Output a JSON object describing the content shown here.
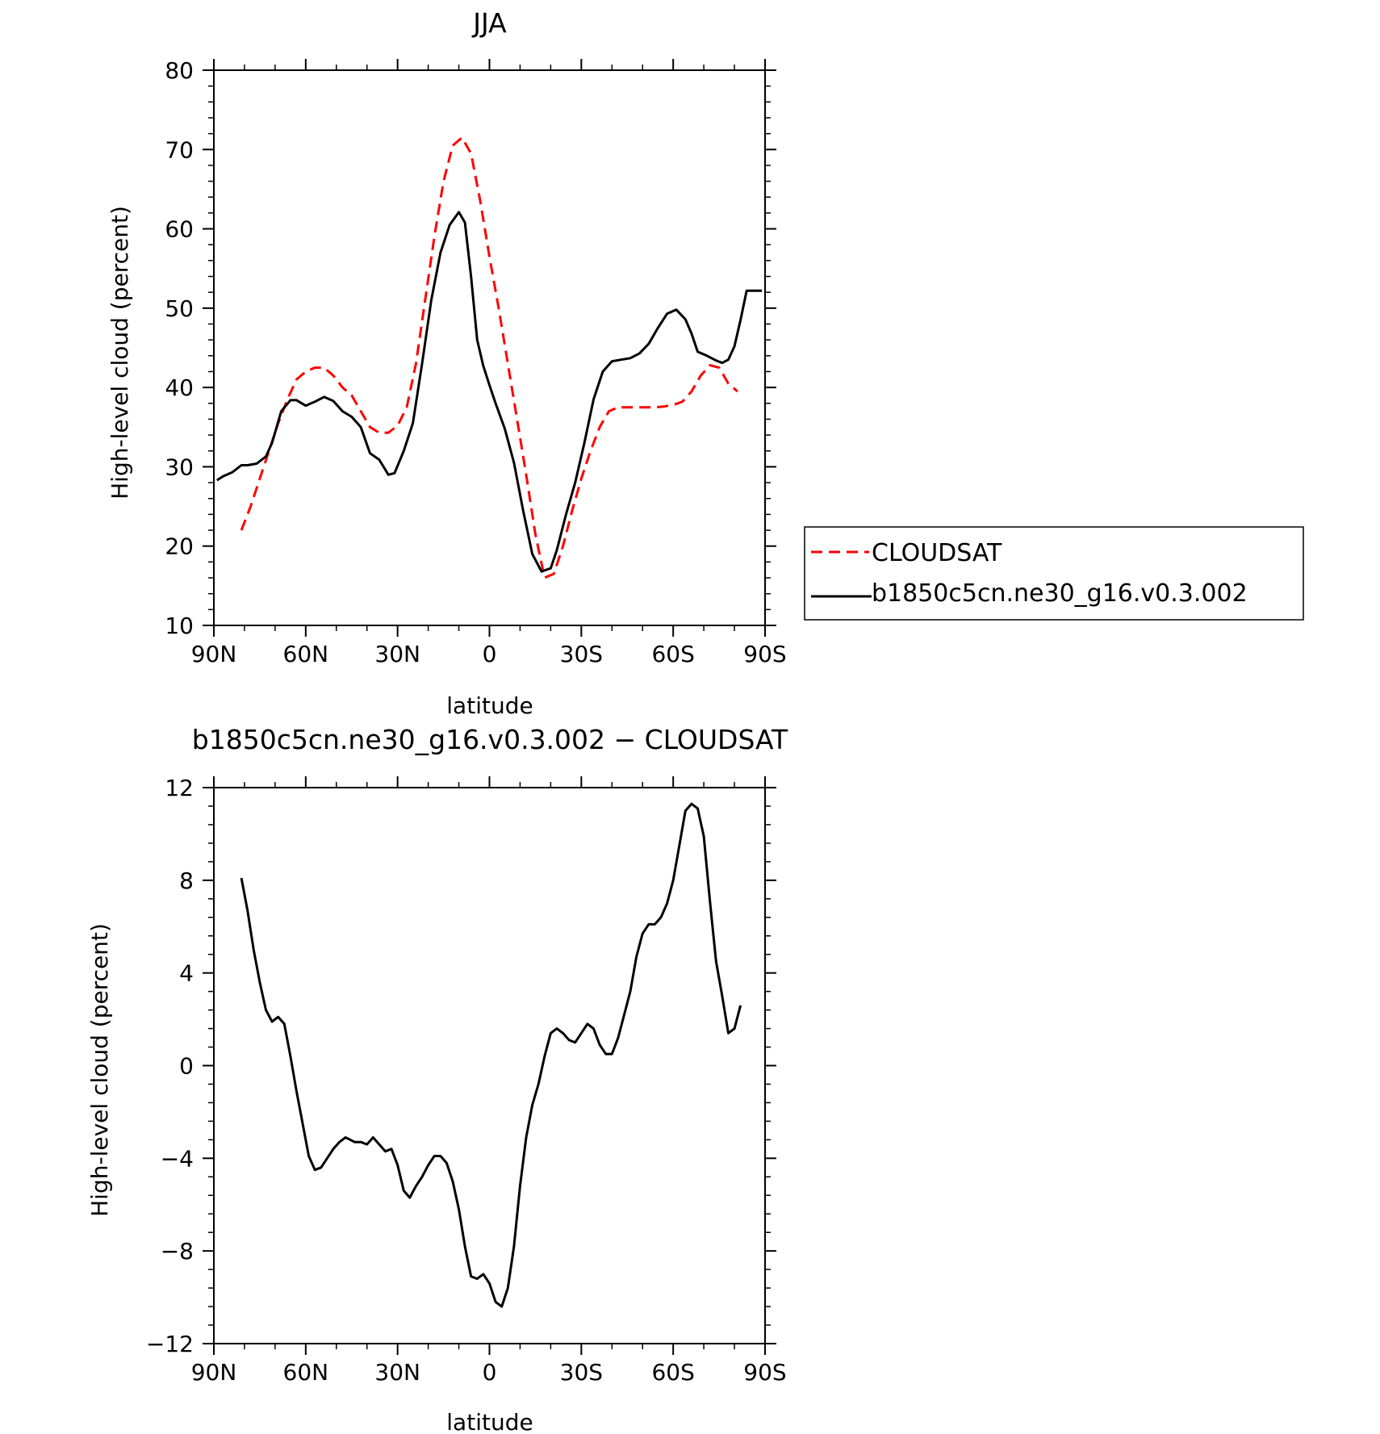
{
  "chart_data": [
    {
      "type": "line",
      "title": "JJA",
      "xlabel": "latitude",
      "ylabel": "High-level cloud (percent)",
      "xlim": [
        -90,
        90
      ],
      "ylim": [
        10,
        80
      ],
      "x_ticks": [
        -90,
        -60,
        -30,
        0,
        30,
        60,
        90
      ],
      "x_tick_labels": [
        "90N",
        "60N",
        "30N",
        "0",
        "30S",
        "60S",
        "90S"
      ],
      "y_ticks": [
        10,
        20,
        30,
        40,
        50,
        60,
        70,
        80
      ],
      "y_tick_labels": [
        "10",
        "20",
        "30",
        "40",
        "50",
        "60",
        "70",
        "80"
      ],
      "legend_position": "right",
      "series": [
        {
          "name": "CLOUDSAT",
          "color": "#ff0000",
          "dash": "dashed",
          "x": [
            -81,
            -78,
            -75,
            -72,
            -69,
            -66,
            -63,
            -60,
            -57,
            -54,
            -51,
            -48,
            -45,
            -42,
            -39,
            -36,
            -33,
            -30,
            -27,
            -24,
            -21,
            -18,
            -15,
            -12,
            -9,
            -6,
            -3,
            0,
            3,
            6,
            9,
            12,
            15,
            18,
            21,
            24,
            27,
            30,
            33,
            36,
            39,
            42,
            45,
            48,
            51,
            54,
            57,
            60,
            63,
            66,
            69,
            72,
            75,
            78,
            81
          ],
          "y": [
            22,
            25,
            28.5,
            32,
            35.5,
            38.5,
            41,
            42,
            42.5,
            42.5,
            41.5,
            40,
            39,
            37,
            35,
            34.3,
            34.3,
            35.2,
            37.5,
            43,
            51,
            59,
            66,
            70.5,
            71.5,
            69.5,
            63.5,
            56.5,
            50,
            43,
            36,
            29,
            21.5,
            16,
            16.5,
            20,
            24.5,
            28.5,
            32,
            35,
            37,
            37.5,
            37.5,
            37.5,
            37.5,
            37.5,
            37.6,
            37.8,
            38.2,
            39.5,
            41.5,
            42.8,
            42.5,
            40.5,
            39.5
          ]
        },
        {
          "name": "b1850c5cn.ne30_g16.v0.3.002",
          "color": "#000000",
          "dash": "solid",
          "x": [
            -89,
            -87,
            -84,
            -81,
            -79,
            -76,
            -73,
            -71,
            -68,
            -65,
            -63,
            -60,
            -57,
            -54,
            -51,
            -48,
            -45,
            -42,
            -39,
            -36,
            -33,
            -31,
            -28,
            -25,
            -22,
            -19,
            -16,
            -13,
            -10,
            -8,
            -6,
            -4,
            -2,
            0,
            2,
            5,
            8,
            11,
            14,
            17,
            20,
            22,
            25,
            28,
            31,
            34,
            37,
            40,
            43,
            46,
            49,
            52,
            55,
            58,
            61,
            64,
            66,
            68,
            71,
            74,
            76,
            78,
            80,
            82,
            84,
            87,
            89
          ],
          "y": [
            28.3,
            28.8,
            29.3,
            30.2,
            30.2,
            30.4,
            31.3,
            33,
            37,
            38.4,
            38.4,
            37.7,
            38.2,
            38.8,
            38.3,
            37,
            36.3,
            35,
            31.7,
            30.9,
            29,
            29.2,
            32,
            35.5,
            43,
            51,
            57,
            60.5,
            62.1,
            60.8,
            54,
            46,
            42.7,
            40.3,
            38,
            34.8,
            30.5,
            24.5,
            19,
            16.8,
            17.2,
            19.5,
            24,
            28,
            33,
            38.5,
            42,
            43.3,
            43.5,
            43.7,
            44.3,
            45.5,
            47.5,
            49.3,
            49.8,
            48.6,
            46.8,
            44.5,
            44,
            43.4,
            43.1,
            43.5,
            45.2,
            48.5,
            52.2,
            52.2,
            52.2
          ]
        }
      ]
    },
    {
      "type": "line",
      "title": "b1850c5cn.ne30_g16.v0.3.002 − CLOUDSAT",
      "xlabel": "latitude",
      "ylabel": "High-level cloud (percent)",
      "xlim": [
        -90,
        90
      ],
      "ylim": [
        -12,
        12
      ],
      "x_ticks": [
        -90,
        -60,
        -30,
        0,
        30,
        60,
        90
      ],
      "x_tick_labels": [
        "90N",
        "60N",
        "30N",
        "0",
        "30S",
        "60S",
        "90S"
      ],
      "y_ticks": [
        -12,
        -8,
        -4,
        0,
        4,
        8,
        12
      ],
      "y_tick_labels": [
        "−12",
        "−8",
        "−4",
        "0",
        "4",
        "8",
        "12"
      ],
      "series": [
        {
          "color": "#000000",
          "dash": "solid",
          "x": [
            -81,
            -79,
            -77,
            -75,
            -73,
            -71,
            -69,
            -67,
            -65,
            -63,
            -61,
            -59,
            -57,
            -55,
            -53,
            -51,
            -49,
            -47,
            -44,
            -42,
            -40,
            -38,
            -36,
            -34,
            -32,
            -30,
            -28,
            -26,
            -24,
            -22,
            -20,
            -18,
            -16,
            -14,
            -12,
            -10,
            -8,
            -6,
            -4,
            -2,
            0,
            2,
            4,
            6,
            8,
            10,
            12,
            14,
            16,
            18,
            20,
            22,
            24,
            26,
            28,
            30,
            32,
            34,
            36,
            38,
            40,
            42,
            44,
            46,
            48,
            50,
            52,
            54,
            56,
            58,
            60,
            62,
            64,
            66,
            68,
            70,
            72,
            74,
            76,
            78,
            80,
            82
          ],
          "y": [
            8.1,
            6.7,
            5,
            3.6,
            2.4,
            1.9,
            2.1,
            1.8,
            0.4,
            -1.1,
            -2.5,
            -3.9,
            -4.5,
            -4.4,
            -4,
            -3.6,
            -3.3,
            -3.1,
            -3.3,
            -3.3,
            -3.4,
            -3.1,
            -3.4,
            -3.7,
            -3.6,
            -4.3,
            -5.4,
            -5.7,
            -5.2,
            -4.8,
            -4.3,
            -3.9,
            -3.9,
            -4.2,
            -5,
            -6.2,
            -7.8,
            -9.1,
            -9.2,
            -9.0,
            -9.4,
            -10.2,
            -10.4,
            -9.6,
            -7.8,
            -5.2,
            -3.1,
            -1.7,
            -0.8,
            0.4,
            1.4,
            1.6,
            1.4,
            1.1,
            1.0,
            1.4,
            1.8,
            1.6,
            0.9,
            0.5,
            0.5,
            1.2,
            2.2,
            3.2,
            4.7,
            5.7,
            6.1,
            6.1,
            6.4,
            7.0,
            8.0,
            9.5,
            11.0,
            11.3,
            11.1,
            9.9,
            7.1,
            4.5,
            3.0,
            1.4,
            1.6,
            2.6
          ]
        }
      ]
    }
  ]
}
